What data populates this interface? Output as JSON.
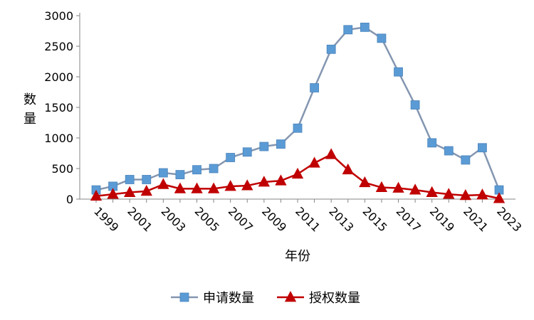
{
  "chart_data": {
    "type": "line",
    "title": "",
    "xlabel": "年份",
    "ylabel": "数量",
    "ylim": [
      0,
      3000
    ],
    "yticks": [
      0,
      500,
      1000,
      1500,
      2000,
      2500,
      3000
    ],
    "grid": false,
    "legend": "bottom",
    "x": [
      1999,
      2000,
      2001,
      2002,
      2003,
      2004,
      2005,
      2006,
      2007,
      2008,
      2009,
      2010,
      2011,
      2012,
      2013,
      2014,
      2015,
      2016,
      2017,
      2018,
      2019,
      2020,
      2021,
      2022,
      2023
    ],
    "xtick_labels": [
      "1999",
      "2001",
      "2003",
      "2005",
      "2007",
      "2009",
      "2011",
      "2013",
      "2015",
      "2017",
      "2019",
      "2021",
      "2023"
    ],
    "series": [
      {
        "name": "申请数量",
        "color": "#8496B0",
        "marker": "square",
        "marker_color": "#5B9BD5",
        "values": [
          150,
          210,
          320,
          320,
          430,
          400,
          480,
          500,
          680,
          770,
          860,
          900,
          1160,
          1820,
          2450,
          2770,
          2810,
          2630,
          2080,
          1540,
          920,
          790,
          640,
          840,
          150
        ]
      },
      {
        "name": "授权数量",
        "color": "#C00000",
        "marker": "triangle",
        "marker_color": "#C00000",
        "values": [
          50,
          80,
          110,
          130,
          240,
          170,
          170,
          170,
          210,
          220,
          280,
          300,
          410,
          590,
          730,
          480,
          270,
          190,
          180,
          150,
          110,
          80,
          60,
          70,
          10
        ]
      }
    ]
  }
}
